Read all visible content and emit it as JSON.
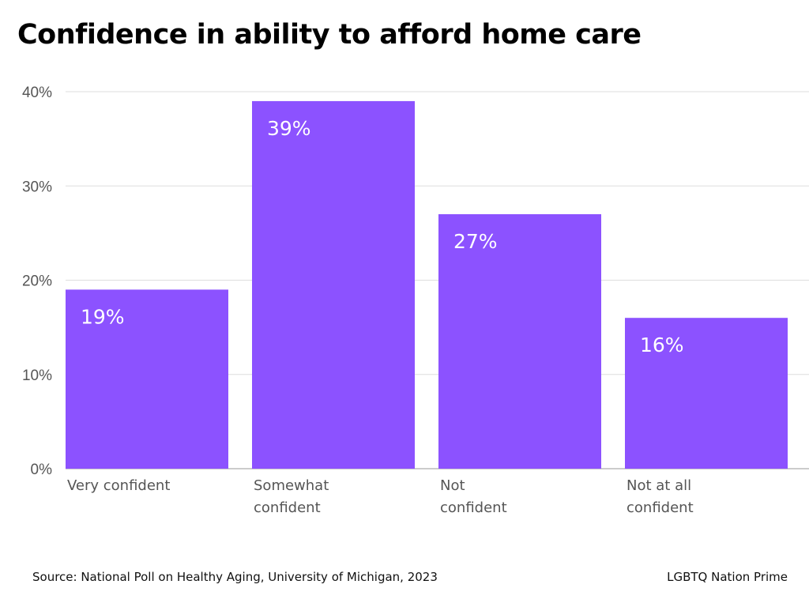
{
  "chart_data": {
    "type": "bar",
    "title": "Confidence in ability to afford home care",
    "categories": [
      [
        "Very confident"
      ],
      [
        "Somewhat",
        "confident"
      ],
      [
        "Not",
        "confident"
      ],
      [
        "Not at all",
        "confident"
      ]
    ],
    "values": [
      19,
      39,
      27,
      16
    ],
    "data_labels": [
      "19%",
      "39%",
      "27%",
      "16%"
    ],
    "ylim": [
      0,
      40
    ],
    "yticks": [
      0,
      10,
      20,
      30,
      40
    ],
    "ytick_labels": [
      "0%",
      "10%",
      "20%",
      "30%",
      "40%"
    ],
    "grid": true,
    "bar_color": "#8c52ff",
    "xlabel": "",
    "ylabel": ""
  },
  "footer": {
    "source": "Source: National Poll on Healthy Aging, University of Michigan, 2023",
    "credit": "LGBTQ Nation Prime"
  }
}
